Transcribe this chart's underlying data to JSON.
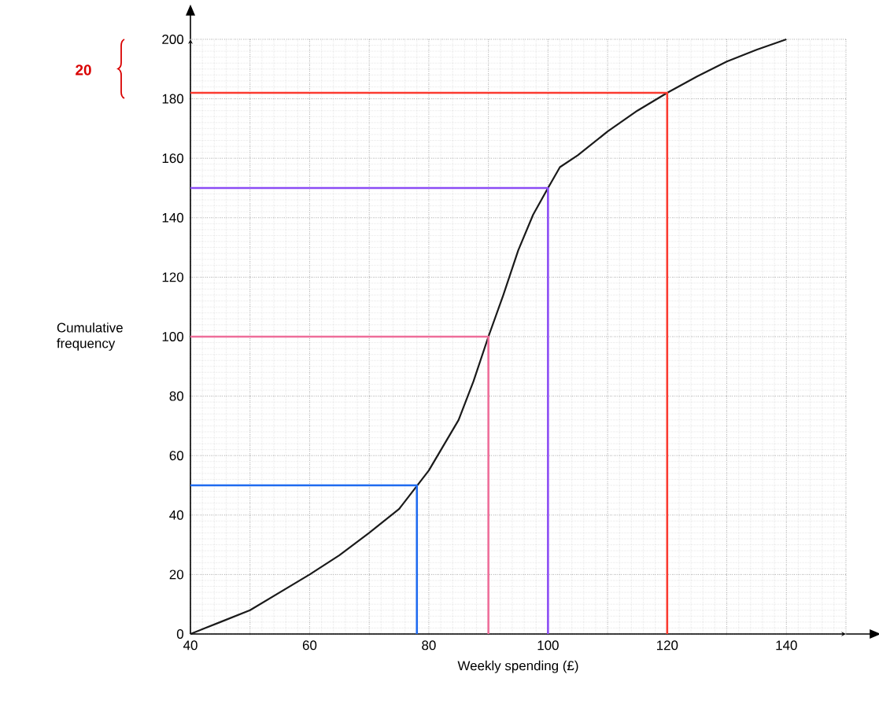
{
  "chart_data": {
    "type": "line",
    "xlabel": "Weekly spending (£)",
    "ylabel": "Cumulative frequency",
    "xlim": [
      40,
      150
    ],
    "ylim": [
      0,
      200
    ],
    "xticks": [
      40,
      {
        "value": 50,
        "label": null
      },
      60,
      {
        "value": 70,
        "label": null
      },
      80,
      {
        "value": 90,
        "label": null
      },
      100,
      {
        "value": 110,
        "label": null
      },
      120,
      {
        "value": 130,
        "label": null
      },
      140,
      {
        "value": 150,
        "label": null
      }
    ],
    "yticks": [
      0,
      20,
      40,
      60,
      80,
      100,
      120,
      140,
      160,
      180,
      200
    ],
    "grid": true,
    "line_style": "solid",
    "marker": "none",
    "annotations": [
      "20"
    ],
    "series": [
      {
        "color": "#1a1a1a",
        "x": [
          40,
          45,
          50,
          55,
          60,
          65,
          70,
          75,
          80,
          85,
          87.5,
          90,
          92.5,
          95,
          97.5,
          100,
          102,
          105,
          110,
          115,
          120,
          125,
          130,
          135,
          140
        ],
        "values": [
          0,
          4,
          8,
          14,
          20,
          26.5,
          34,
          42,
          55,
          72,
          85,
          100,
          114,
          129,
          141,
          150,
          157,
          161,
          169,
          176,
          182,
          187.5,
          192.5,
          196.5,
          200
        ]
      },
      {
        "color": "#1f6bf0",
        "x": [
          40,
          78,
          78
        ],
        "values": [
          50,
          50,
          0
        ]
      },
      {
        "color": "#ee6e9a",
        "x": [
          40,
          90,
          90
        ],
        "values": [
          100,
          100,
          0
        ]
      },
      {
        "color": "#8b4cf5",
        "x": [
          40,
          100,
          100
        ],
        "values": [
          150,
          150,
          0
        ]
      },
      {
        "color": "#fb3b30",
        "x": [
          40,
          120,
          120
        ],
        "values": [
          182,
          182,
          0
        ]
      }
    ]
  }
}
